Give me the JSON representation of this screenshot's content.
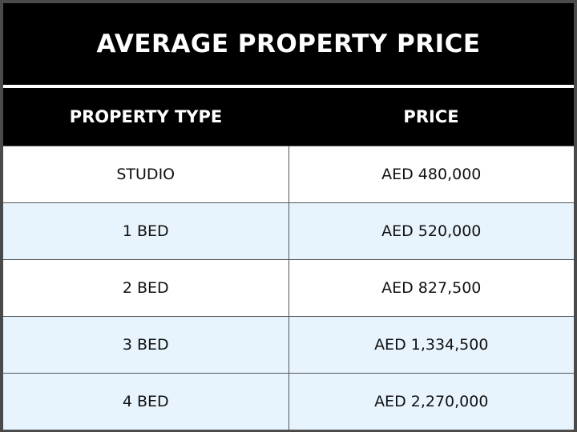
{
  "title": "AVERAGE PROPERTY PRICE",
  "table": {
    "headers": [
      "PROPERTY TYPE",
      "PRICE"
    ],
    "rows": [
      [
        "STUDIO",
        "AED 480,000"
      ],
      [
        "1 BED",
        "AED 520,000"
      ],
      [
        "2 BED",
        "AED 827,500"
      ],
      [
        "3 BED",
        "AED 1,334,500"
      ],
      [
        "4 BED",
        "AED 2,270,000"
      ]
    ]
  },
  "colors": {
    "header_background": "#000000",
    "header_text": "#ffffff",
    "row_white": "#ffffff",
    "row_tint": "#e8f4fd",
    "frame": "#4a4a4a"
  }
}
